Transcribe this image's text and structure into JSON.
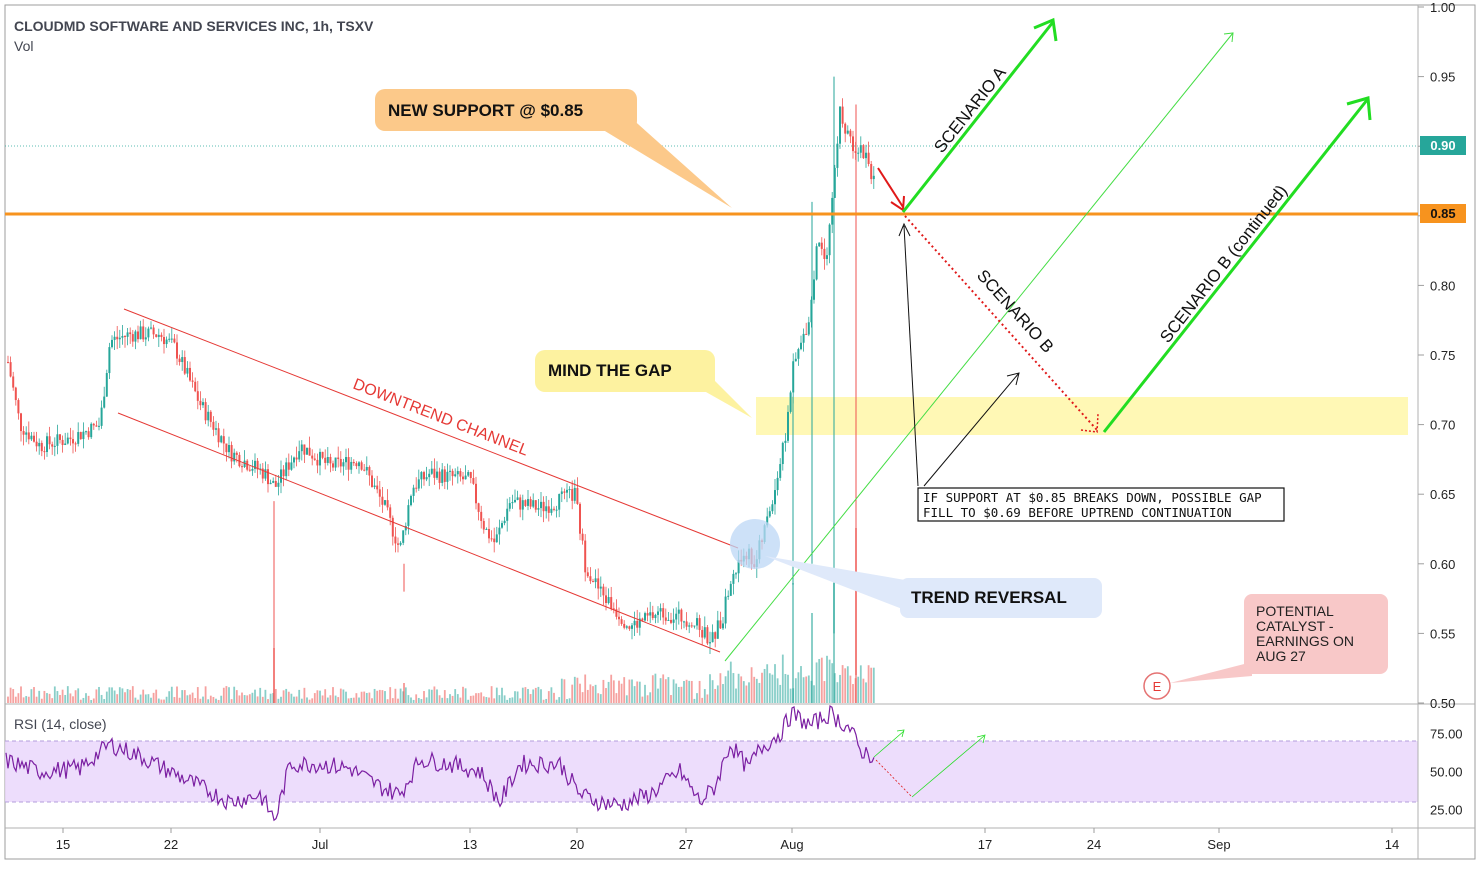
{
  "header": {
    "symbol_line": "CLOUDMD SOFTWARE AND SERVICES INC, 1h, TSXV",
    "vol_label": "Vol"
  },
  "rsi_panel": {
    "label": "RSI (14, close)",
    "ticks": [
      "75.00",
      "50.00",
      "25.00"
    ]
  },
  "annotations": {
    "new_support": "NEW SUPPORT @ $0.85",
    "mind_gap": "MIND THE GAP",
    "trend_reversal": "TREND REVERSAL",
    "downtrend": "DOWNTREND CHANNEL",
    "scenario_a": "SCENARIO A",
    "scenario_b": "SCENARIO B",
    "scenario_b_cont": "SCENARIO B (continued)",
    "note_line1": "IF SUPPORT AT $0.85 BREAKS DOWN, POSSIBLE GAP",
    "note_line2": "FILL TO $0.69 BEFORE UPTREND CONTINUATION",
    "catalyst_lines": [
      "POTENTIAL",
      "CATALYST -",
      "EARNINGS ON",
      "AUG 27"
    ],
    "earnings_marker": "E"
  },
  "colors": {
    "up": "#26a69a",
    "down": "#ef5350",
    "support_line": "#f7931e",
    "current_price_badge": "#26a69a",
    "channel": "#e53935",
    "scenario_arrow": "#22dd22",
    "rsi_line": "#7b1fa2",
    "rsi_band": "#e8d5fb",
    "gap_band": "#fff7a8"
  },
  "chart_data": {
    "type": "candlestick",
    "title": "CLOUDMD SOFTWARE AND SERVICES INC, 1h, TSXV",
    "price_axis": {
      "ticks": [
        "1.00",
        "0.95",
        "0.90",
        "0.85",
        "0.80",
        "0.75",
        "0.70",
        "0.65",
        "0.60",
        "0.55",
        "0.50"
      ],
      "range": [
        0.5,
        1.0
      ]
    },
    "current_price": "0.90",
    "support_price": "0.85",
    "x_axis_ticks": [
      "15",
      "22",
      "Jul",
      "13",
      "20",
      "27",
      "Aug",
      "17",
      "24",
      "Sep",
      "14"
    ],
    "gap_zone": [
      0.695,
      0.72
    ],
    "rsi": {
      "range": [
        0,
        100
      ],
      "upper_band": 70,
      "lower_band": 30
    }
  }
}
